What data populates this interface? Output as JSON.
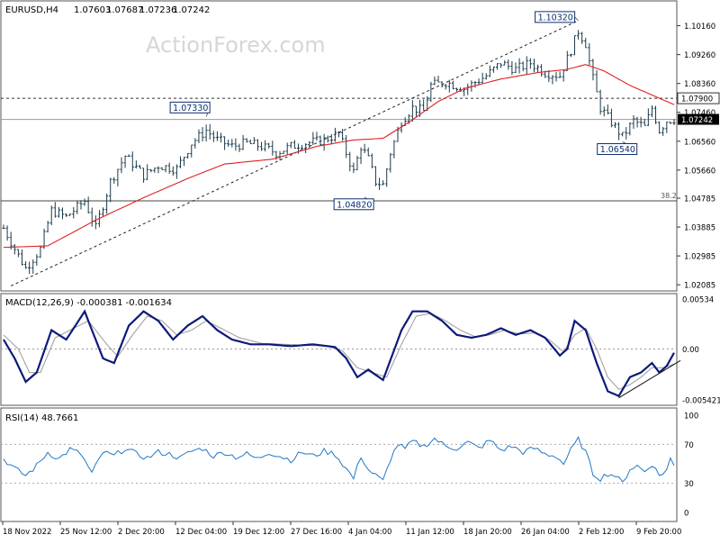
{
  "chart_data": [
    {
      "type": "candlestick",
      "panel": "price",
      "header": {
        "symbol": "EURUSD,H4",
        "open": "1.07603",
        "high": "1.07687",
        "low": "1.07236",
        "close": "1.07242"
      },
      "watermark": "ActionForex.com",
      "y_axis": {
        "ylim": [
          1.0195,
          1.1085
        ],
        "ticks": [
          "1.10160",
          "1.09260",
          "1.08360",
          "1.07460",
          "1.06560",
          "1.05660",
          "1.04785",
          "1.03885",
          "1.02985",
          "1.02085"
        ]
      },
      "current_price": "1.07242",
      "horizontal_levels": [
        {
          "price": 1.079,
          "label": "1.07900",
          "style": "dotted"
        },
        {
          "price": 1.0724,
          "label": "",
          "style": "solid-gray"
        },
        {
          "price": 1.047,
          "label": "38.2",
          "style": "solid"
        }
      ],
      "annotations": [
        {
          "label": "1.10320",
          "price": 1.1032,
          "bar": 156
        },
        {
          "label": "1.07330",
          "price": 1.0733,
          "bar": 55
        },
        {
          "label": "1.04820",
          "price": 1.0482,
          "bar": 98
        },
        {
          "label": "1.06540",
          "price": 1.0654,
          "bar": 168
        }
      ],
      "trendline": {
        "from": {
          "bar": 2,
          "price": 1.0205
        },
        "to": {
          "bar": 156,
          "price": 1.1032
        }
      },
      "moving_average_anchors": [
        [
          0,
          1.0325
        ],
        [
          12,
          1.033
        ],
        [
          25,
          1.041
        ],
        [
          38,
          1.048
        ],
        [
          50,
          1.054
        ],
        [
          60,
          1.0585
        ],
        [
          73,
          1.06
        ],
        [
          85,
          1.064
        ],
        [
          95,
          1.066
        ],
        [
          103,
          1.0665
        ],
        [
          110,
          1.0715
        ],
        [
          118,
          1.078
        ],
        [
          125,
          1.082
        ],
        [
          135,
          1.085
        ],
        [
          145,
          1.087
        ],
        [
          153,
          1.088
        ],
        [
          158,
          1.0895
        ],
        [
          163,
          1.0875
        ],
        [
          170,
          1.083
        ],
        [
          178,
          1.079
        ],
        [
          182,
          1.077
        ]
      ],
      "price_anchors": [
        [
          0,
          1.0385
        ],
        [
          4,
          1.03
        ],
        [
          6,
          1.026
        ],
        [
          10,
          1.032
        ],
        [
          13,
          1.044
        ],
        [
          17,
          1.042
        ],
        [
          22,
          1.047
        ],
        [
          25,
          1.0385
        ],
        [
          29,
          1.053
        ],
        [
          33,
          1.061
        ],
        [
          38,
          1.055
        ],
        [
          42,
          1.058
        ],
        [
          47,
          1.057
        ],
        [
          51,
          1.065
        ],
        [
          55,
          1.069
        ],
        [
          58,
          1.066
        ],
        [
          62,
          1.064
        ],
        [
          66,
          1.065
        ],
        [
          70,
          1.064
        ],
        [
          74,
          1.062
        ],
        [
          78,
          1.064
        ],
        [
          82,
          1.065
        ],
        [
          87,
          1.066
        ],
        [
          91,
          1.068
        ],
        [
          93,
          1.062
        ],
        [
          95,
          1.056
        ],
        [
          97,
          1.064
        ],
        [
          99,
          1.06
        ],
        [
          101,
          1.053
        ],
        [
          103,
          1.052
        ],
        [
          105,
          1.062
        ],
        [
          108,
          1.072
        ],
        [
          111,
          1.076
        ],
        [
          114,
          1.075
        ],
        [
          116,
          1.083
        ],
        [
          120,
          1.084
        ],
        [
          125,
          1.082
        ],
        [
          128,
          1.084
        ],
        [
          131,
          1.086
        ],
        [
          135,
          1.09
        ],
        [
          139,
          1.088
        ],
        [
          143,
          1.09
        ],
        [
          147,
          1.087
        ],
        [
          151,
          1.086
        ],
        [
          154,
          1.094
        ],
        [
          156,
          1.1
        ],
        [
          158,
          1.096
        ],
        [
          160,
          1.085
        ],
        [
          162,
          1.076
        ],
        [
          166,
          1.07
        ],
        [
          168,
          1.067
        ],
        [
          171,
          1.072
        ],
        [
          174,
          1.07
        ],
        [
          176,
          1.076
        ],
        [
          178,
          1.069
        ],
        [
          180,
          1.072
        ],
        [
          182,
          1.0725
        ]
      ],
      "n_bars": 183,
      "x_ticks": [
        "18 Nov 2022",
        "25 Nov 12:00",
        "2 Dec 20:00",
        "12 Dec 04:00",
        "19 Dec 12:00",
        "27 Dec 16:00",
        "4 Jan 04:00",
        "11 Jan 12:00",
        "18 Jan 20:00",
        "26 Jan 04:00",
        "2 Feb 12:00",
        "9 Feb 20:00"
      ],
      "colors": {
        "bars": "#1b3a4b",
        "moving_average": "#e02020",
        "grid_line": "#888888",
        "label_box_text": "#0c2f6e"
      }
    },
    {
      "type": "line",
      "panel": "macd",
      "title": "MACD(12,26,9) -0.000381 -0.001634",
      "ylim": [
        -0.0058,
        0.0057
      ],
      "ticks": [
        "0.00534",
        "0.00",
        "-0.005421"
      ],
      "series": [
        {
          "name": "MACD",
          "anchors": [
            [
              0,
              0.001
            ],
            [
              3,
              -0.001
            ],
            [
              6,
              -0.0035
            ],
            [
              9,
              -0.0025
            ],
            [
              13,
              0.002
            ],
            [
              17,
              0.001
            ],
            [
              22,
              0.004
            ],
            [
              27,
              -0.001
            ],
            [
              30,
              -0.0015
            ],
            [
              34,
              0.0025
            ],
            [
              38,
              0.004
            ],
            [
              42,
              0.003
            ],
            [
              46,
              0.001
            ],
            [
              50,
              0.0025
            ],
            [
              54,
              0.0035
            ],
            [
              58,
              0.002
            ],
            [
              62,
              0.001
            ],
            [
              67,
              0.0005
            ],
            [
              72,
              0.0005
            ],
            [
              78,
              0.0003
            ],
            [
              84,
              0.0005
            ],
            [
              90,
              0.0002
            ],
            [
              93,
              -0.001
            ],
            [
              96,
              -0.003
            ],
            [
              99,
              -0.0022
            ],
            [
              103,
              -0.0033
            ],
            [
              108,
              0.002
            ],
            [
              111,
              0.004
            ],
            [
              115,
              0.004
            ],
            [
              119,
              0.003
            ],
            [
              123,
              0.0015
            ],
            [
              127,
              0.0012
            ],
            [
              131,
              0.0015
            ],
            [
              135,
              0.0022
            ],
            [
              139,
              0.0015
            ],
            [
              143,
              0.002
            ],
            [
              147,
              0.0012
            ],
            [
              151,
              -0.0007
            ],
            [
              153,
              0.0
            ],
            [
              155,
              0.003
            ],
            [
              158,
              0.002
            ],
            [
              161,
              -0.0015
            ],
            [
              164,
              -0.0045
            ],
            [
              167,
              -0.005
            ],
            [
              170,
              -0.003
            ],
            [
              173,
              -0.0025
            ],
            [
              176,
              -0.0015
            ],
            [
              178,
              -0.0025
            ],
            [
              180,
              -0.0018
            ],
            [
              182,
              -0.0004
            ]
          ],
          "color": "#0c1a7a"
        },
        {
          "name": "Signal",
          "anchors": [
            [
              0,
              0.0015
            ],
            [
              4,
              0.0
            ],
            [
              7,
              -0.0025
            ],
            [
              10,
              -0.0025
            ],
            [
              14,
              0.0012
            ],
            [
              18,
              0.002
            ],
            [
              23,
              0.003
            ],
            [
              28,
              0.0005
            ],
            [
              31,
              -0.0008
            ],
            [
              35,
              0.0015
            ],
            [
              39,
              0.0035
            ],
            [
              43,
              0.003
            ],
            [
              47,
              0.0015
            ],
            [
              51,
              0.002
            ],
            [
              55,
              0.003
            ],
            [
              59,
              0.0022
            ],
            [
              64,
              0.0012
            ],
            [
              70,
              0.0006
            ],
            [
              76,
              0.0005
            ],
            [
              82,
              0.0004
            ],
            [
              88,
              0.0003
            ],
            [
              92,
              -0.0002
            ],
            [
              96,
              -0.002
            ],
            [
              100,
              -0.0025
            ],
            [
              104,
              -0.003
            ],
            [
              108,
              0.0005
            ],
            [
              112,
              0.0035
            ],
            [
              116,
              0.0038
            ],
            [
              120,
              0.003
            ],
            [
              124,
              0.002
            ],
            [
              128,
              0.0013
            ],
            [
              132,
              0.0015
            ],
            [
              136,
              0.002
            ],
            [
              140,
              0.0016
            ],
            [
              144,
              0.0017
            ],
            [
              148,
              0.001
            ],
            [
              152,
              -0.0003
            ],
            [
              155,
              0.0015
            ],
            [
              158,
              0.0022
            ],
            [
              161,
              0.0
            ],
            [
              164,
              -0.003
            ],
            [
              167,
              -0.0043
            ],
            [
              170,
              -0.0038
            ],
            [
              173,
              -0.003
            ],
            [
              176,
              -0.002
            ],
            [
              179,
              -0.002
            ],
            [
              182,
              -0.0016
            ]
          ],
          "color": "#9a9a9a"
        }
      ],
      "trendline": {
        "from": {
          "bar": 167,
          "price": -0.0052
        },
        "to": {
          "bar": 182,
          "price": -0.0018
        }
      }
    },
    {
      "type": "line",
      "panel": "rsi",
      "title": "RSI(14) 48.7661",
      "ylim": [
        0,
        100
      ],
      "ticks": [
        "100",
        "70",
        "30",
        "0"
      ],
      "levels": [
        70,
        30
      ],
      "series": [
        {
          "name": "RSI",
          "anchors": [
            [
              0,
              55
            ],
            [
              3,
              45
            ],
            [
              6,
              38
            ],
            [
              9,
              48
            ],
            [
              12,
              62
            ],
            [
              15,
              55
            ],
            [
              18,
              65
            ],
            [
              21,
              60
            ],
            [
              24,
              40
            ],
            [
              27,
              62
            ],
            [
              30,
              58
            ],
            [
              33,
              66
            ],
            [
              36,
              60
            ],
            [
              39,
              56
            ],
            [
              42,
              62
            ],
            [
              45,
              60
            ],
            [
              48,
              56
            ],
            [
              51,
              63
            ],
            [
              54,
              66
            ],
            [
              57,
              58
            ],
            [
              60,
              62
            ],
            [
              63,
              57
            ],
            [
              66,
              60
            ],
            [
              69,
              55
            ],
            [
              72,
              62
            ],
            [
              75,
              58
            ],
            [
              78,
              54
            ],
            [
              81,
              62
            ],
            [
              84,
              58
            ],
            [
              87,
              63
            ],
            [
              90,
              60
            ],
            [
              93,
              45
            ],
            [
              95,
              35
            ],
            [
              97,
              58
            ],
            [
              99,
              44
            ],
            [
              101,
              38
            ],
            [
              103,
              32
            ],
            [
              105,
              55
            ],
            [
              107,
              70
            ],
            [
              109,
              65
            ],
            [
              111,
              73
            ],
            [
              114,
              68
            ],
            [
              117,
              76
            ],
            [
              120,
              68
            ],
            [
              123,
              66
            ],
            [
              126,
              72
            ],
            [
              129,
              66
            ],
            [
              132,
              74
            ],
            [
              135,
              64
            ],
            [
              138,
              68
            ],
            [
              141,
              62
            ],
            [
              144,
              66
            ],
            [
              147,
              60
            ],
            [
              150,
              58
            ],
            [
              152,
              50
            ],
            [
              154,
              64
            ],
            [
              156,
              75
            ],
            [
              158,
              62
            ],
            [
              160,
              40
            ],
            [
              162,
              35
            ],
            [
              164,
              40
            ],
            [
              166,
              38
            ],
            [
              168,
              30
            ],
            [
              170,
              45
            ],
            [
              172,
              48
            ],
            [
              174,
              42
            ],
            [
              176,
              50
            ],
            [
              178,
              38
            ],
            [
              180,
              44
            ],
            [
              181,
              55
            ],
            [
              182,
              48
            ]
          ],
          "color": "#1f78c8"
        }
      ]
    }
  ]
}
